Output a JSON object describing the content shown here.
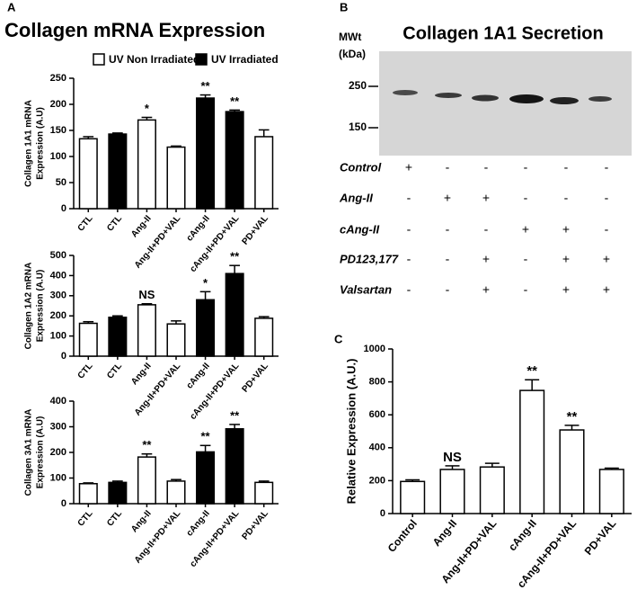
{
  "figure": {
    "panel_labels": [
      "A",
      "B",
      "C"
    ],
    "title_a": "Collagen mRNA Expression",
    "legend": [
      {
        "name": "UV Non Irradiated",
        "color": "#ffffff"
      },
      {
        "name": "UV Irradiated",
        "color": "#000000"
      }
    ]
  },
  "blot": {
    "title": "Collagen 1A1 Secretion",
    "mw_label": [
      "MWt",
      "(kDa)"
    ],
    "mw_markers": [
      {
        "value": 250,
        "label": "250"
      },
      {
        "value": 150,
        "label": "150"
      }
    ],
    "rows": [
      {
        "label": "Control",
        "signs": [
          "+",
          "-",
          "-",
          "-",
          "-",
          "-"
        ]
      },
      {
        "label": "Ang-II",
        "signs": [
          "-",
          "+",
          "+",
          "-",
          "-",
          "-"
        ]
      },
      {
        "label": "cAng-II",
        "signs": [
          "-",
          "-",
          "-",
          "+",
          "+",
          "-"
        ]
      },
      {
        "label": "PD123,177",
        "signs": [
          "-",
          "-",
          "+",
          "-",
          "+",
          "+"
        ]
      },
      {
        "label": "Valsartan",
        "signs": [
          "-",
          "-",
          "+",
          "-",
          "+",
          "+"
        ]
      }
    ]
  },
  "chart_data": [
    {
      "type": "bar",
      "ylabel": [
        "Collagen 1A1 mRNA",
        "Expression (A.U)"
      ],
      "categories": [
        "CTL",
        "CTL",
        "Ang-II",
        "Ang-II+PD+VAL",
        "cAng-II",
        "cAng-II+PD+VAL",
        "PD+VAL"
      ],
      "values": [
        134,
        143,
        170,
        118,
        212,
        186,
        138
      ],
      "errors": [
        4,
        2,
        5,
        2,
        6,
        3,
        13
      ],
      "colors": [
        "#ffffff",
        "#000000",
        "#ffffff",
        "#ffffff",
        "#000000",
        "#000000",
        "#ffffff"
      ],
      "annotations": [
        null,
        null,
        "*",
        null,
        "**",
        "**",
        null
      ],
      "ylim": [
        0,
        250
      ],
      "yticks": [
        0,
        50,
        100,
        150,
        200,
        250
      ]
    },
    {
      "type": "bar",
      "ylabel": [
        "Collagen 1A2 mRNA",
        "Expression (A.U)"
      ],
      "categories": [
        "CTL",
        "CTL",
        "Ang-II",
        "Ang-II+PD+VAL",
        "cAng-II",
        "cAng-II+PD+VAL",
        "PD+VAL"
      ],
      "values": [
        163,
        193,
        255,
        160,
        280,
        410,
        188
      ],
      "errors": [
        8,
        7,
        5,
        15,
        40,
        40,
        8
      ],
      "colors": [
        "#ffffff",
        "#000000",
        "#ffffff",
        "#ffffff",
        "#000000",
        "#000000",
        "#ffffff"
      ],
      "annotations": [
        null,
        null,
        "NS",
        null,
        "*",
        "**",
        null
      ],
      "ylim": [
        0,
        500
      ],
      "yticks": [
        0,
        100,
        200,
        300,
        400,
        500
      ]
    },
    {
      "type": "bar",
      "ylabel": [
        "Collagen 3A1 mRNA",
        "Expression (A.U)"
      ],
      "categories": [
        "CTL",
        "CTL",
        "Ang-II",
        "Ang-II+PD+VAL",
        "cAng-II",
        "cAng-II+PD+VAL",
        "PD+VAL"
      ],
      "values": [
        78,
        83,
        182,
        88,
        202,
        292,
        83
      ],
      "errors": [
        3,
        5,
        12,
        6,
        25,
        17,
        5
      ],
      "colors": [
        "#ffffff",
        "#000000",
        "#ffffff",
        "#ffffff",
        "#000000",
        "#000000",
        "#ffffff"
      ],
      "annotations": [
        null,
        null,
        "**",
        null,
        "**",
        "**",
        null
      ],
      "ylim": [
        0,
        400
      ],
      "yticks": [
        0,
        100,
        200,
        300,
        400
      ]
    },
    {
      "type": "bar",
      "ylabel": [
        "Relative Expression (A.U.)"
      ],
      "categories": [
        "Control",
        "Ang-II",
        "Ang-II+PD+VAL",
        "cAng-II",
        "cAng-II+PD+VAL",
        "PD+VAL"
      ],
      "values": [
        195,
        268,
        283,
        748,
        508,
        268
      ],
      "errors": [
        10,
        22,
        22,
        65,
        28,
        8
      ],
      "colors": [
        "#ffffff",
        "#ffffff",
        "#ffffff",
        "#ffffff",
        "#ffffff",
        "#ffffff"
      ],
      "annotations": [
        null,
        "NS",
        null,
        "**",
        "**",
        null
      ],
      "ylim": [
        0,
        1000
      ],
      "yticks": [
        0,
        200,
        400,
        600,
        800,
        1000
      ]
    }
  ]
}
